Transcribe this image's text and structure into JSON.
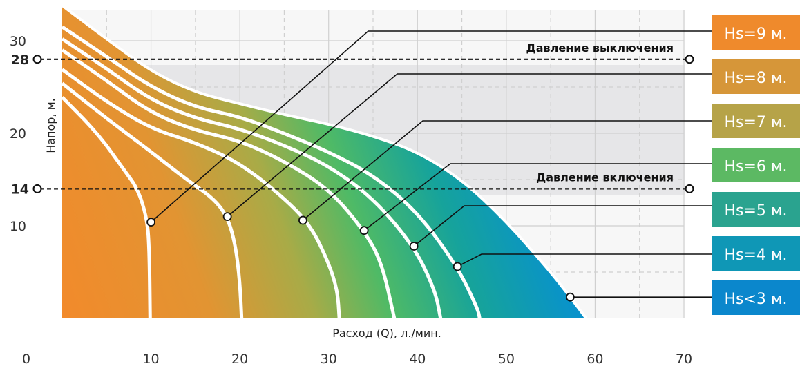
{
  "chart_data": {
    "type": "area",
    "xlabel": "Расход (Q), л./мин.",
    "ylabel": "Напор, м.",
    "xlim": [
      0,
      70
    ],
    "ylim": [
      0,
      35
    ],
    "x_ticks": [
      0,
      10,
      20,
      30,
      40,
      50,
      60,
      70
    ],
    "y_ticks": [
      10,
      20,
      30
    ],
    "grid": true,
    "series": [
      {
        "name": "Hs=9 м.",
        "color": "#ef8a2c",
        "marker": [
          10,
          10.4
        ],
        "points": [
          [
            0,
            23.9
          ],
          [
            4,
            20
          ],
          [
            7,
            16
          ],
          [
            8.5,
            14
          ],
          [
            9.5,
            11
          ],
          [
            9.8,
            8
          ],
          [
            9.9,
            0
          ]
        ]
      },
      {
        "name": "Hs=8 м.",
        "color": "#d69639",
        "marker": [
          18.6,
          11
        ],
        "points": [
          [
            0,
            25.4
          ],
          [
            5,
            21.6
          ],
          [
            10,
            18
          ],
          [
            14,
            15
          ],
          [
            17,
            13
          ],
          [
            18.6,
            11
          ],
          [
            19.5,
            8
          ],
          [
            20,
            4
          ],
          [
            20.2,
            0
          ]
        ]
      },
      {
        "name": "Hs=7 м.",
        "color": "#b6a348",
        "marker": [
          27.1,
          10.6
        ],
        "points": [
          [
            0,
            26.9
          ],
          [
            5,
            23.4
          ],
          [
            10,
            20.5
          ],
          [
            15,
            19
          ],
          [
            20,
            16.8
          ],
          [
            25,
            13
          ],
          [
            28,
            10
          ],
          [
            30,
            6
          ],
          [
            31,
            3
          ],
          [
            31.2,
            0
          ]
        ]
      },
      {
        "name": "Hs=6 м.",
        "color": "#5cb963",
        "marker": [
          34,
          9.5
        ],
        "points": [
          [
            0,
            29
          ],
          [
            5,
            25.7
          ],
          [
            10,
            22.2
          ],
          [
            15,
            20.3
          ],
          [
            20,
            19.2
          ],
          [
            25,
            17
          ],
          [
            30,
            14
          ],
          [
            34,
            9.5
          ],
          [
            36,
            6
          ],
          [
            37.4,
            0
          ]
        ]
      },
      {
        "name": "Hs=5 м.",
        "color": "#2aa38f",
        "marker": [
          39.6,
          7.8
        ],
        "points": [
          [
            0,
            30.2
          ],
          [
            5,
            27
          ],
          [
            10,
            23.6
          ],
          [
            15,
            21.6
          ],
          [
            20,
            20.5
          ],
          [
            25,
            18.7
          ],
          [
            30,
            16.5
          ],
          [
            35,
            13
          ],
          [
            39.6,
            7.8
          ],
          [
            42,
            3
          ],
          [
            42.6,
            0
          ]
        ]
      },
      {
        "name": "Hs=4 м.",
        "color": "#0f97b6",
        "marker": [
          44.5,
          5.6
        ],
        "points": [
          [
            0,
            31.5
          ],
          [
            5,
            28.3
          ],
          [
            10,
            25
          ],
          [
            15,
            22.8
          ],
          [
            20,
            21.8
          ],
          [
            25,
            20
          ],
          [
            30,
            18
          ],
          [
            35,
            15.5
          ],
          [
            40,
            11.5
          ],
          [
            44.5,
            5.6
          ],
          [
            46.8,
            1
          ],
          [
            47,
            0
          ]
        ]
      },
      {
        "name": "Hs<3 м.",
        "color": "#0b87cc",
        "marker": [
          57.2,
          2.3
        ],
        "points": [
          [
            0,
            33.8
          ],
          [
            5,
            30.2
          ],
          [
            10,
            26.7
          ],
          [
            15,
            24.4
          ],
          [
            20,
            23.2
          ],
          [
            25,
            22
          ],
          [
            30,
            21
          ],
          [
            35,
            19.7
          ],
          [
            40,
            18
          ],
          [
            45,
            15
          ],
          [
            50,
            10.5
          ],
          [
            55,
            5
          ],
          [
            57.2,
            2.3
          ],
          [
            59,
            0
          ]
        ]
      }
    ],
    "pressure_lines": [
      {
        "label": "Давление выключения",
        "value": 28
      },
      {
        "label": "Давление включения",
        "value": 14
      }
    ],
    "axis_marks": [
      "28",
      "14"
    ]
  },
  "boxes": [
    "Hs=9 м.",
    "Hs=8 м.",
    "Hs=7 м.",
    "Hs=6 м.",
    "Hs=5 м.",
    "Hs=4 м.",
    "Hs<3 м."
  ]
}
